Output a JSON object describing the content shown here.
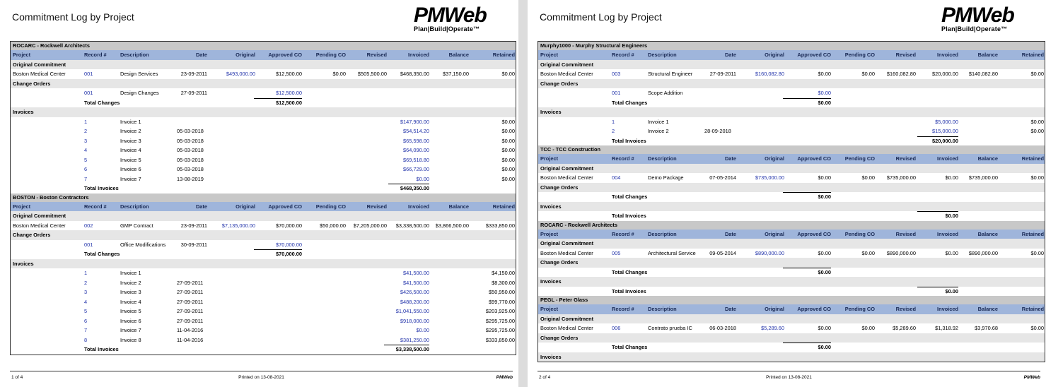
{
  "report_title": "Commitment Log by Project",
  "logo": {
    "brand": "PMWeb",
    "tagline": "Plan|Build|Operate™"
  },
  "columns": [
    "Project",
    "Record #",
    "Description",
    "Date",
    "Original",
    "Approved CO",
    "Pending CO",
    "Revised",
    "Invoiced",
    "Balance",
    "Retained"
  ],
  "labels": {
    "original": "Original Commitment",
    "changes": "Change Orders",
    "invoices": "Invoices",
    "total_changes": "Total Changes",
    "total_invoices": "Total Invoices"
  },
  "page1": {
    "footer": {
      "page": "1 of 4",
      "printed": "Printed on 13-08-2021",
      "brand": "PMWeb"
    },
    "rocarc": {
      "name": "ROCARC - Rockwell Architects",
      "commit": [
        "Boston Medical Center",
        "001",
        "Design Services",
        "23-09-2011",
        "$493,000.00",
        "$12,500.00",
        "$0.00",
        "$505,500.00",
        "$468,350.00",
        "$37,150.00",
        "$0.00"
      ],
      "co": [
        [
          "001",
          "Design Changes",
          "27-09-2011",
          "$12,500.00"
        ]
      ],
      "total_changes": "$12,500.00",
      "inv": [
        [
          "1",
          "Invoice 1",
          "",
          "$147,900.00",
          "$0.00"
        ],
        [
          "2",
          "Invoice 2",
          "05-03-2018",
          "$54,514.20",
          "$0.00"
        ],
        [
          "3",
          "Invoice 3",
          "05-03-2018",
          "$65,598.00",
          "$0.00"
        ],
        [
          "4",
          "Invoice 4",
          "05-03-2018",
          "$64,090.00",
          "$0.00"
        ],
        [
          "5",
          "Invoice 5",
          "05-03-2018",
          "$69,518.80",
          "$0.00"
        ],
        [
          "6",
          "Invoice 6",
          "05-03-2018",
          "$66,729.00",
          "$0.00"
        ],
        [
          "7",
          "Invoice 7",
          "13-08-2019",
          "$0.00",
          "$0.00"
        ]
      ],
      "total_invoices": "$468,350.00"
    },
    "boston": {
      "name": "BOSTON - Boston Contractors",
      "commit": [
        "Boston Medical Center",
        "002",
        "GMP Contract",
        "23-09-2011",
        "$7,135,000.00",
        "$70,000.00",
        "$50,000.00",
        "$7,205,000.00",
        "$3,338,500.00",
        "$3,866,500.00",
        "$333,850.00"
      ],
      "co": [
        [
          "001",
          "Office Modifications",
          "30-09-2011",
          "$70,000.00"
        ]
      ],
      "total_changes": "$70,000.00",
      "inv": [
        [
          "1",
          "Invoice 1",
          "",
          "$41,500.00",
          "$4,150.00"
        ],
        [
          "2",
          "Invoice 2",
          "27-09-2011",
          "$41,500.00",
          "$8,300.00"
        ],
        [
          "3",
          "Invoice 3",
          "27-09-2011",
          "$426,500.00",
          "$50,950.00"
        ],
        [
          "4",
          "Invoice 4",
          "27-09-2011",
          "$488,200.00",
          "$99,770.00"
        ],
        [
          "5",
          "Invoice 5",
          "27-09-2011",
          "$1,041,550.00",
          "$203,925.00"
        ],
        [
          "6",
          "Invoice 6",
          "27-09-2011",
          "$918,000.00",
          "$295,725.00"
        ],
        [
          "7",
          "Invoice 7",
          "11-04-2016",
          "$0.00",
          "$295,725.00"
        ],
        [
          "8",
          "Invoice 8",
          "11-04-2016",
          "$381,250.00",
          "$333,850.00"
        ]
      ],
      "total_invoices": "$3,338,500.00"
    }
  },
  "page2": {
    "footer": {
      "page": "2 of 4",
      "printed": "Printed on 13-08-2021",
      "brand": "PMWeb"
    },
    "murphy": {
      "name": "Murphy1000 - Murphy Structural Engineers",
      "commit": [
        "Boston Medical Center",
        "003",
        "Structural Engineer",
        "27-09-2011",
        "$160,082.80",
        "$0.00",
        "$0.00",
        "$160,082.80",
        "$20,000.00",
        "$140,082.80",
        "$0.00"
      ],
      "co": [
        [
          "001",
          "Scope Addition",
          "",
          "$0.00"
        ]
      ],
      "total_changes": "$0.00",
      "inv": [
        [
          "1",
          "Invoice 1",
          "",
          "$5,000.00",
          "$0.00"
        ],
        [
          "2",
          "Invoice 2",
          "28-09-2018",
          "$15,000.00",
          "$0.00"
        ]
      ],
      "total_invoices": "$20,000.00"
    },
    "tcc": {
      "name": "TCC - TCC Construction",
      "commit": [
        "Boston Medical Center",
        "004",
        "Demo Package",
        "07-05-2014",
        "$735,000.00",
        "$0.00",
        "$0.00",
        "$735,000.00",
        "$0.00",
        "$735,000.00",
        "$0.00"
      ],
      "total_changes": "$0.00",
      "total_invoices": "$0.00"
    },
    "rocarc": {
      "name": "ROCARC - Rockwell Architects",
      "commit": [
        "Boston Medical Center",
        "005",
        "Architectural Service",
        "09-05-2014",
        "$890,000.00",
        "$0.00",
        "$0.00",
        "$890,000.00",
        "$0.00",
        "$890,000.00",
        "$0.00"
      ],
      "total_changes": "$0.00",
      "total_invoices": "$0.00"
    },
    "pegl": {
      "name": "PEGL - Peter Glass",
      "commit": [
        "Boston Medical Center",
        "006",
        "Contrato prueba IC",
        "06-03-2018",
        "$5,289.60",
        "$0.00",
        "$0.00",
        "$5,289.60",
        "$1,318.92",
        "$3,970.68",
        "$0.00"
      ],
      "total_changes": "$0.00"
    }
  }
}
